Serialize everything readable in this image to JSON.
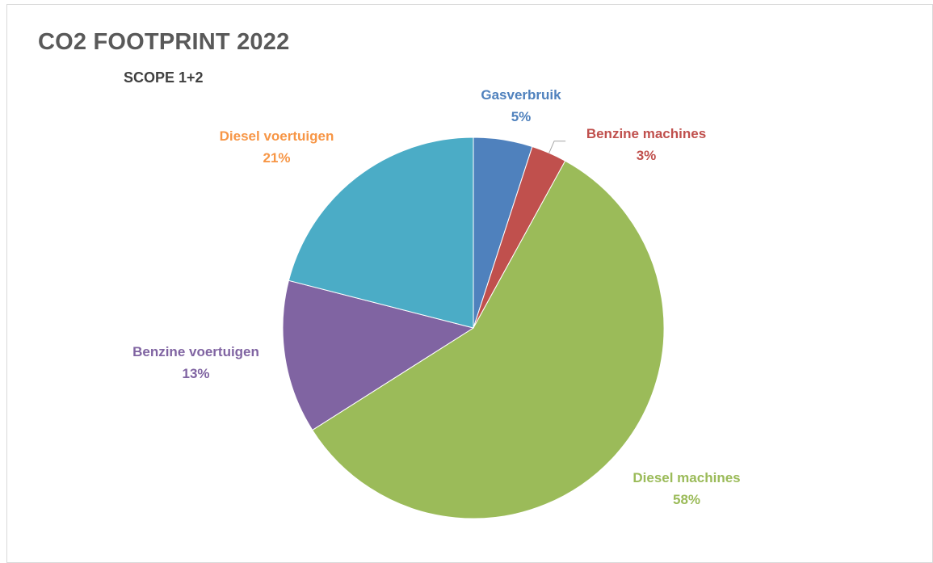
{
  "chart_data": {
    "type": "pie",
    "title": "CO2 FOOTPRINT 2022",
    "subtitle": "SCOPE 1+2",
    "slices": [
      {
        "label": "Gasverbruik",
        "value": 5,
        "display": "5%",
        "color": "#4f81bd"
      },
      {
        "label": "Benzine machines",
        "value": 3,
        "display": "3%",
        "color": "#c0504d"
      },
      {
        "label": "Diesel machines",
        "value": 58,
        "display": "58%",
        "color": "#9bbb59"
      },
      {
        "label": "Benzine voertuigen",
        "value": 13,
        "display": "13%",
        "color": "#8064a2"
      },
      {
        "label": "Diesel voertuigen",
        "value": 21,
        "display": "21%",
        "color": "#4bacc6"
      }
    ],
    "label_colors": [
      "#4f81bd",
      "#c0504d",
      "#9bbb59",
      "#8064a2",
      "#f79646"
    ],
    "start_angle": "12 o'clock",
    "direction": "clockwise",
    "legend": "none"
  }
}
